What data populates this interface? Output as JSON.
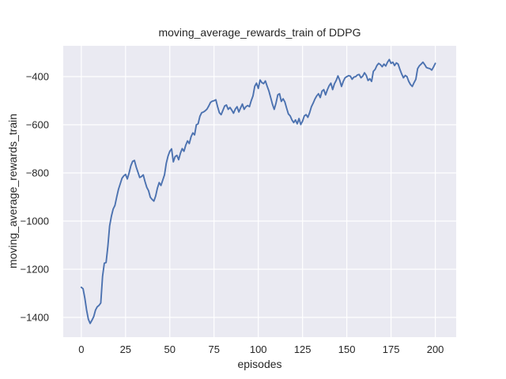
{
  "chart_data": {
    "type": "line",
    "title": "moving_average_rewards_train of DDPG",
    "xlabel": "episodes",
    "ylabel": "moving_average_rewards_train",
    "xlim": [
      -10.2,
      211.8
    ],
    "ylim": [
      -1482,
      -272
    ],
    "xticks": [
      0,
      25,
      50,
      75,
      100,
      125,
      150,
      175,
      200
    ],
    "xtick_labels": [
      "0",
      "25",
      "50",
      "75",
      "100",
      "125",
      "150",
      "175",
      "200"
    ],
    "yticks": [
      -400,
      -600,
      -800,
      -1000,
      -1200,
      -1400
    ],
    "ytick_labels": [
      "−400",
      "−600",
      "−800",
      "−1000",
      "−1200",
      "−1400"
    ],
    "grid": true,
    "legend": "none",
    "style": {
      "figure_bg": "#ffffff",
      "axes_bg": "#eaeaf2",
      "grid_color": "#ffffff",
      "line_color": "#4c72b0",
      "text_color": "#262626",
      "line_width": 1.9,
      "grid_width": 1.2
    },
    "series": [
      {
        "name": "moving_average_rewards_train",
        "x_start": 0,
        "x_step": 1,
        "values": [
          -1275,
          -1281,
          -1320,
          -1370,
          -1408,
          -1425,
          -1412,
          -1397,
          -1370,
          -1356,
          -1350,
          -1340,
          -1230,
          -1175,
          -1172,
          -1105,
          -1020,
          -980,
          -950,
          -935,
          -900,
          -868,
          -845,
          -822,
          -812,
          -806,
          -825,
          -800,
          -770,
          -752,
          -748,
          -775,
          -797,
          -819,
          -815,
          -808,
          -836,
          -860,
          -874,
          -901,
          -910,
          -917,
          -896,
          -863,
          -840,
          -852,
          -830,
          -808,
          -760,
          -730,
          -710,
          -700,
          -754,
          -732,
          -727,
          -745,
          -718,
          -699,
          -710,
          -685,
          -667,
          -678,
          -650,
          -634,
          -642,
          -600,
          -596,
          -565,
          -550,
          -547,
          -542,
          -535,
          -522,
          -507,
          -502,
          -500,
          -496,
          -525,
          -550,
          -558,
          -540,
          -522,
          -518,
          -536,
          -528,
          -539,
          -552,
          -535,
          -525,
          -547,
          -530,
          -514,
          -536,
          -525,
          -520,
          -525,
          -500,
          -480,
          -440,
          -427,
          -449,
          -414,
          -425,
          -429,
          -418,
          -440,
          -460,
          -487,
          -515,
          -536,
          -510,
          -476,
          -471,
          -503,
          -492,
          -505,
          -531,
          -555,
          -563,
          -580,
          -591,
          -580,
          -596,
          -574,
          -599,
          -585,
          -563,
          -558,
          -569,
          -550,
          -525,
          -510,
          -493,
          -480,
          -471,
          -487,
          -460,
          -454,
          -476,
          -455,
          -438,
          -427,
          -454,
          -430,
          -416,
          -397,
          -415,
          -441,
          -420,
          -405,
          -400,
          -396,
          -398,
          -411,
          -402,
          -400,
          -393,
          -391,
          -405,
          -398,
          -384,
          -395,
          -416,
          -409,
          -420,
          -378,
          -370,
          -354,
          -345,
          -350,
          -359,
          -348,
          -356,
          -340,
          -329,
          -345,
          -340,
          -354,
          -343,
          -348,
          -370,
          -389,
          -405,
          -395,
          -400,
          -420,
          -433,
          -441,
          -425,
          -411,
          -367,
          -355,
          -348,
          -340,
          -350,
          -362,
          -365,
          -367,
          -373,
          -360,
          -345
        ]
      }
    ]
  }
}
